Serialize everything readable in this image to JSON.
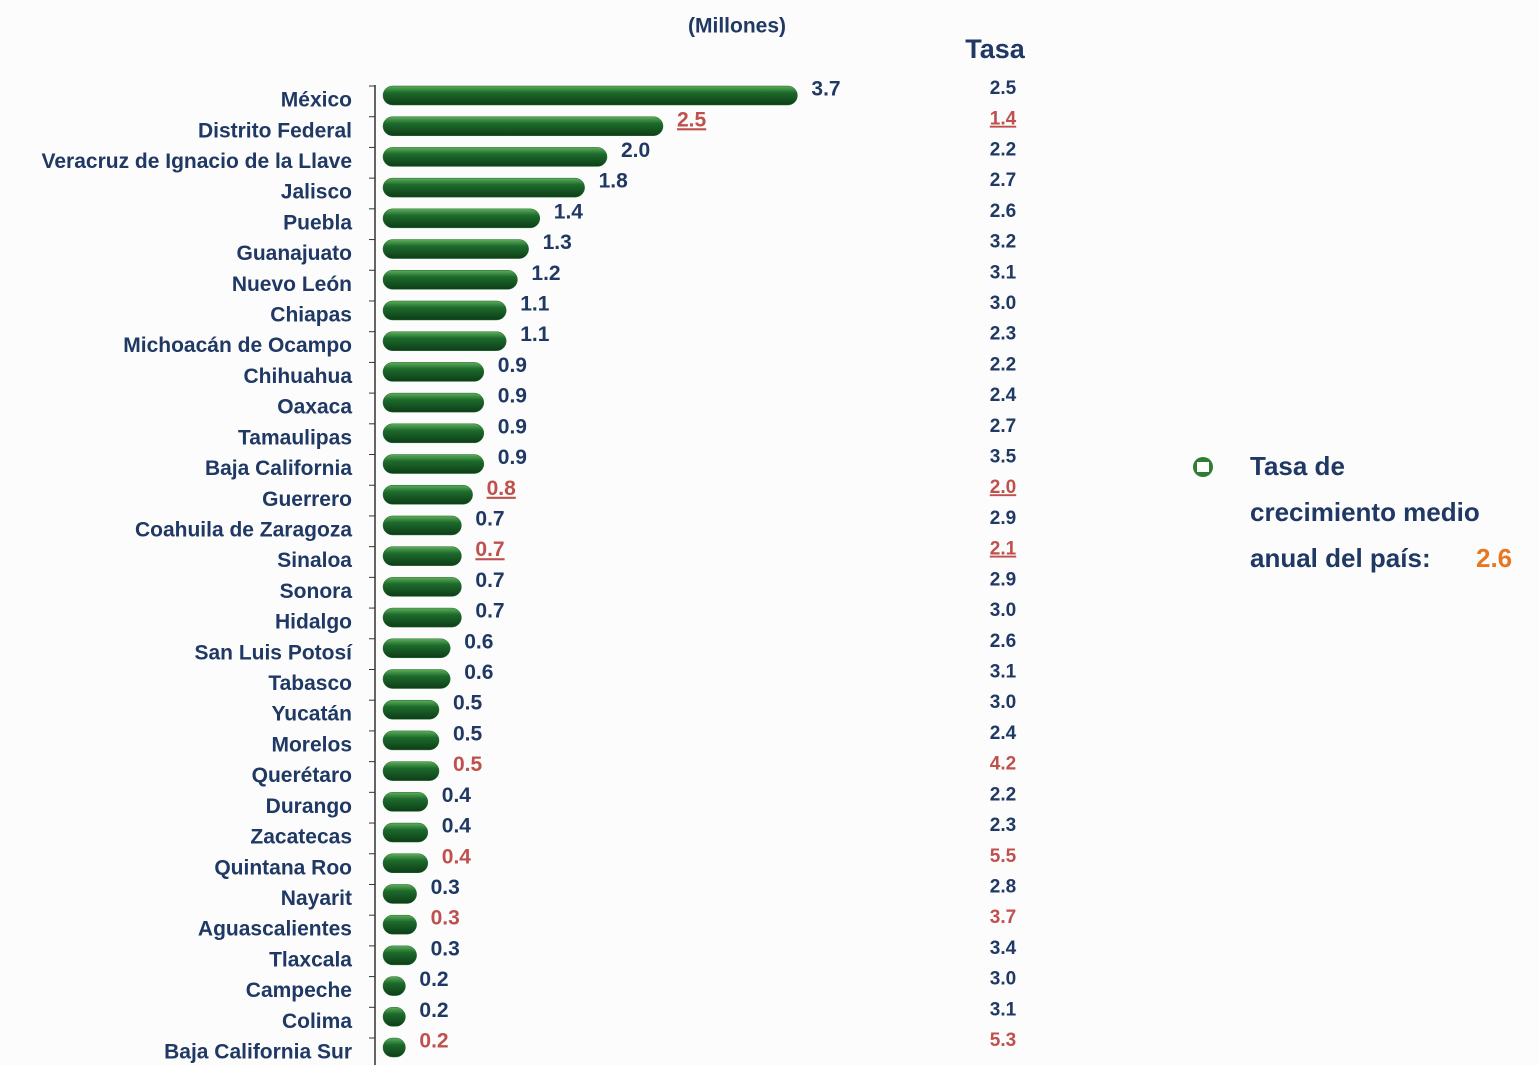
{
  "chart_data": {
    "type": "bar",
    "title": "(Millones)",
    "categories": [
      "México",
      "Distrito Federal",
      "Veracruz de Ignacio de la Llave",
      "Jalisco",
      "Puebla",
      "Guanajuato",
      "Nuevo León",
      "Chiapas",
      "Michoacán de Ocampo",
      "Chihuahua",
      "Oaxaca",
      "Tamaulipas",
      "Baja California",
      "Guerrero",
      "Coahuila de Zaragoza",
      "Sinaloa",
      "Sonora",
      "Hidalgo",
      "San Luis Potosí",
      "Tabasco",
      "Yucatán",
      "Morelos",
      "Querétaro",
      "Durango",
      "Zacatecas",
      "Quintana Roo",
      "Nayarit",
      "Aguascalientes",
      "Tlaxcala",
      "Campeche",
      "Colima",
      "Baja California Sur"
    ],
    "values": [
      3.7,
      2.5,
      2.0,
      1.8,
      1.4,
      1.3,
      1.2,
      1.1,
      1.1,
      0.9,
      0.9,
      0.9,
      0.9,
      0.8,
      0.7,
      0.7,
      0.7,
      0.7,
      0.6,
      0.6,
      0.5,
      0.5,
      0.5,
      0.4,
      0.4,
      0.4,
      0.3,
      0.3,
      0.3,
      0.2,
      0.2,
      0.2
    ],
    "value_labels": [
      "3.7",
      "2.5",
      "2.0",
      "1.8",
      "1.4",
      "1.3",
      "1.2",
      "1.1",
      "1.1",
      "0.9",
      "0.9",
      "0.9",
      "0.9",
      "0.8",
      "0.7",
      "0.7",
      "0.7",
      "0.7",
      "0.6",
      "0.6",
      "0.5",
      "0.5",
      "0.5",
      "0.4",
      "0.4",
      "0.4",
      "0.3",
      "0.3",
      "0.3",
      "0.2",
      "0.2",
      "0.2"
    ],
    "label_colors": [
      "#1f3864",
      "#c0504d",
      "#1f3864",
      "#1f3864",
      "#1f3864",
      "#1f3864",
      "#1f3864",
      "#1f3864",
      "#1f3864",
      "#1f3864",
      "#1f3864",
      "#1f3864",
      "#1f3864",
      "#c0504d",
      "#1f3864",
      "#c0504d",
      "#1f3864",
      "#1f3864",
      "#1f3864",
      "#1f3864",
      "#1f3864",
      "#1f3864",
      "#c0504d",
      "#1f3864",
      "#1f3864",
      "#c0504d",
      "#1f3864",
      "#c0504d",
      "#1f3864",
      "#1f3864",
      "#1f3864",
      "#c0504d"
    ],
    "underlined": [
      false,
      true,
      false,
      false,
      false,
      false,
      false,
      false,
      false,
      false,
      false,
      false,
      false,
      true,
      false,
      true,
      false,
      false,
      false,
      false,
      false,
      false,
      false,
      false,
      false,
      false,
      false,
      false,
      false,
      false,
      false,
      false
    ],
    "color": "#1d6b2c",
    "xlim": [
      0,
      4
    ],
    "tasa": {
      "title": "Tasa",
      "values": [
        2.5,
        1.4,
        2.2,
        2.7,
        2.6,
        3.2,
        3.1,
        3.0,
        2.3,
        2.2,
        2.4,
        2.7,
        3.5,
        2.0,
        2.9,
        2.1,
        2.9,
        3.0,
        2.6,
        3.1,
        3.0,
        2.4,
        4.2,
        2.2,
        2.3,
        5.5,
        2.8,
        3.7,
        3.4,
        3.0,
        3.1,
        5.3
      ],
      "value_labels": [
        "2.5",
        "1.4",
        "2.2",
        "2.7",
        "2.6",
        "3.2",
        "3.1",
        "3.0",
        "2.3",
        "2.2",
        "2.4",
        "2.7",
        "3.5",
        "2.0",
        "2.9",
        "2.1",
        "2.9",
        "3.0",
        "2.6",
        "3.1",
        "3.0",
        "2.4",
        "4.2",
        "2.2",
        "2.3",
        "5.5",
        "2.8",
        "3.7",
        "3.4",
        "3.0",
        "3.1",
        "5.3"
      ]
    },
    "note": {
      "lines": [
        "Tasa de",
        "crecimiento medio",
        "anual del país:"
      ],
      "value": 2.6,
      "value_color": "#e87722"
    }
  }
}
